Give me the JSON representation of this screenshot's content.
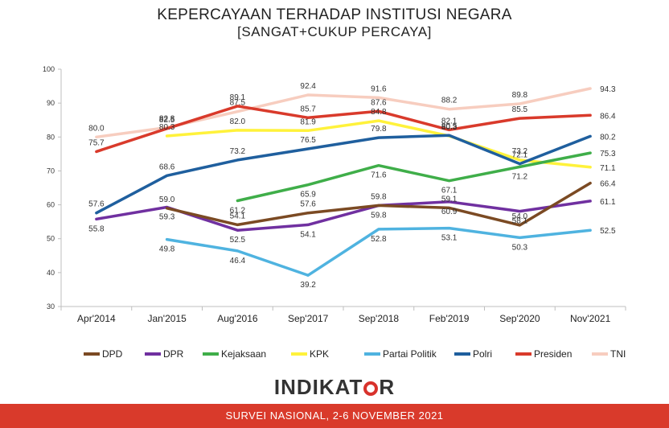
{
  "title": "KEPERCAYAAN TERHADAP INSTITUSI NEGARA",
  "subtitle": "[SANGAT+CUKUP PERCAYA]",
  "logo": {
    "text_left": "INDIKAT",
    "text_right": "R"
  },
  "footer": "SURVEI NASIONAL, 2-6 NOVEMBER 2021",
  "chart_data": {
    "type": "line",
    "categories": [
      "Apr'2014",
      "Jan'2015",
      "Aug'2016",
      "Sep'2017",
      "Sep'2018",
      "Feb'2019",
      "Sep'2020",
      "Nov'2021"
    ],
    "ylim": [
      30,
      100
    ],
    "yticks": [
      30,
      40,
      50,
      60,
      70,
      80,
      90,
      100
    ],
    "legend": "bottom",
    "series": [
      {
        "name": "DPD",
        "color": "#7b4a23",
        "values": [
          null,
          59.0,
          54.1,
          57.6,
          59.8,
          59.1,
          54.0,
          66.4
        ],
        "labels": [
          null,
          "59.0",
          "54.1",
          "57.6",
          "59.8",
          "59.1",
          "54.0",
          "66.4"
        ]
      },
      {
        "name": "DPR",
        "color": "#7030a0",
        "values": [
          55.8,
          59.3,
          52.5,
          54.1,
          59.8,
          60.9,
          58.1,
          61.1
        ],
        "labels": [
          "55.8",
          "59.3",
          "52.5",
          "54.1",
          "59.8",
          "60.9",
          "58.1",
          "61.1"
        ]
      },
      {
        "name": "Kejaksaan",
        "color": "#3fae49",
        "values": [
          null,
          null,
          61.2,
          65.9,
          71.6,
          67.1,
          71.2,
          75.3
        ],
        "labels": [
          null,
          null,
          "61.2",
          "65.9",
          "71.6",
          "67.1",
          "71.2",
          "75.3"
        ]
      },
      {
        "name": "KPK",
        "color": "#fff23b",
        "values": [
          null,
          80.3,
          82.0,
          81.9,
          84.8,
          80.3,
          73.2,
          71.1
        ],
        "labels": [
          null,
          "80.3",
          "82.0",
          "81.9",
          "84.8",
          "80.3",
          "73.2",
          "71.1"
        ]
      },
      {
        "name": "Partai Politik",
        "color": "#4fb3e0",
        "values": [
          null,
          49.8,
          46.4,
          39.2,
          52.8,
          53.1,
          50.3,
          52.5
        ],
        "labels": [
          null,
          "49.8",
          "46.4",
          "39.2",
          "52.8",
          "53.1",
          "50.3",
          "52.5"
        ]
      },
      {
        "name": "Polri",
        "color": "#1f5f9e",
        "values": [
          57.6,
          68.6,
          73.2,
          76.5,
          79.8,
          80.5,
          72.1,
          80.2
        ],
        "labels": [
          "57.6",
          "68.6",
          "73.2",
          "76.5",
          "79.8",
          "80.5",
          "72.1",
          "80.2"
        ]
      },
      {
        "name": "Presiden",
        "color": "#d93a2b",
        "values": [
          75.7,
          82.5,
          89.1,
          85.7,
          87.6,
          82.1,
          85.5,
          86.4
        ],
        "labels": [
          "75.7",
          "82.5",
          "89.1",
          "85.7",
          "87.6",
          "82.1",
          "85.5",
          "86.4"
        ]
      },
      {
        "name": "TNI",
        "color": "#f7cdbf",
        "values": [
          80.0,
          82.8,
          87.5,
          92.4,
          91.6,
          88.2,
          89.8,
          94.3
        ],
        "labels": [
          "80.0",
          "82.8",
          "87.5",
          "92.4",
          "91.6",
          "88.2",
          "89.8",
          "94.3"
        ]
      }
    ]
  }
}
